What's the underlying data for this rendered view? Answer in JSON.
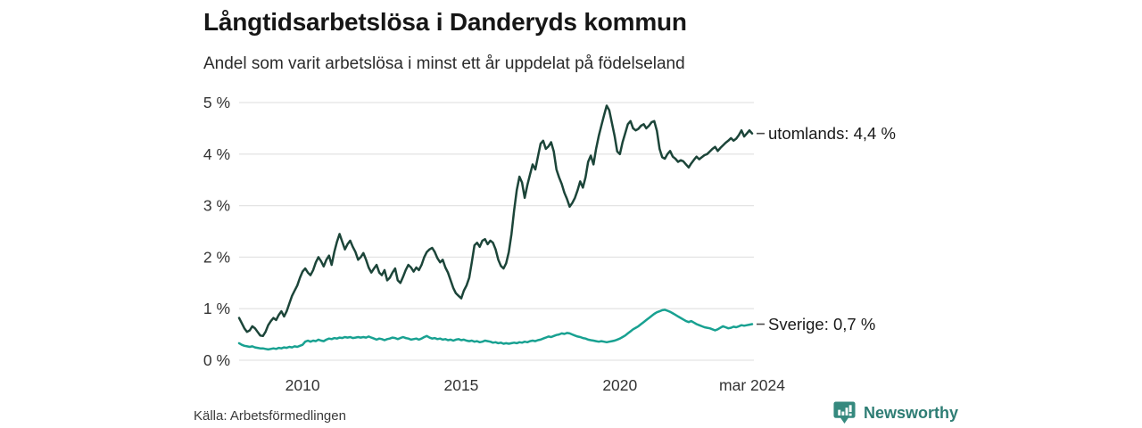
{
  "footer": {
    "source": "Källa: Arbetsförmedlingen",
    "brand": "Newsworthy"
  },
  "colors": {
    "series_utomlands": "#1c4539",
    "series_sverige": "#18a191",
    "gridline": "#e4e4e4",
    "axis_text": "#333333",
    "label_text": "#1a1a1a",
    "leader_dash": "#4a4a4a",
    "brand_teal": "#35897e",
    "brand_text": "#2e7d74"
  },
  "chart_data": {
    "type": "line",
    "title": "Långtidsarbetslösa i Danderyds kommun",
    "subtitle": "Andel som varit arbetslösa i minst ett år uppdelat på födelseland",
    "x_unit": "decimal_year_monthly",
    "xlim": [
      2008.0,
      2024.167
    ],
    "ylim": [
      0,
      5
    ],
    "grid": "horizontal",
    "legend_position": "end-of-line",
    "yticks": [
      {
        "v": 0,
        "label": "0 %"
      },
      {
        "v": 1,
        "label": "1 %"
      },
      {
        "v": 2,
        "label": "2 %"
      },
      {
        "v": 3,
        "label": "3 %"
      },
      {
        "v": 4,
        "label": "4 %"
      },
      {
        "v": 5,
        "label": "5 %"
      }
    ],
    "xticks": [
      {
        "x": 2010,
        "label": "2010"
      },
      {
        "x": 2015,
        "label": "2015"
      },
      {
        "x": 2020,
        "label": "2020"
      },
      {
        "x": 2024.167,
        "label": "mar 2024"
      }
    ],
    "series": [
      {
        "name": "utomlands",
        "label": "utomlands: 4,4 %",
        "last_value": "4,4 %",
        "color": "#1c4539",
        "x_start": 2008.0,
        "x_step_months": 1,
        "values": [
          0.82,
          0.72,
          0.62,
          0.55,
          0.58,
          0.66,
          0.62,
          0.55,
          0.48,
          0.47,
          0.55,
          0.68,
          0.76,
          0.82,
          0.78,
          0.88,
          0.95,
          0.85,
          0.95,
          1.1,
          1.25,
          1.35,
          1.45,
          1.6,
          1.72,
          1.78,
          1.7,
          1.65,
          1.75,
          1.9,
          2.0,
          1.92,
          1.82,
          1.95,
          2.03,
          1.85,
          2.1,
          2.3,
          2.45,
          2.3,
          2.15,
          2.25,
          2.32,
          2.2,
          2.1,
          1.95,
          2.0,
          2.08,
          1.95,
          1.8,
          1.7,
          1.78,
          1.85,
          1.7,
          1.65,
          1.75,
          1.55,
          1.6,
          1.7,
          1.78,
          1.55,
          1.5,
          1.62,
          1.75,
          1.85,
          1.8,
          1.72,
          1.8,
          1.75,
          1.85,
          2.0,
          2.1,
          2.15,
          2.18,
          2.1,
          1.98,
          1.9,
          1.95,
          1.8,
          1.7,
          1.55,
          1.4,
          1.3,
          1.25,
          1.2,
          1.35,
          1.45,
          1.6,
          1.9,
          2.23,
          2.28,
          2.2,
          2.32,
          2.35,
          2.25,
          2.32,
          2.28,
          2.15,
          1.95,
          1.83,
          1.78,
          1.88,
          2.1,
          2.45,
          2.9,
          3.3,
          3.56,
          3.45,
          3.15,
          3.4,
          3.6,
          3.8,
          3.7,
          3.95,
          4.2,
          4.26,
          4.1,
          4.15,
          4.23,
          4.05,
          3.7,
          3.55,
          3.42,
          3.25,
          3.13,
          2.98,
          3.05,
          3.15,
          3.3,
          3.47,
          3.35,
          3.55,
          3.85,
          3.97,
          3.8,
          4.1,
          4.35,
          4.55,
          4.75,
          4.94,
          4.85,
          4.6,
          4.35,
          4.05,
          4.0,
          4.23,
          4.4,
          4.58,
          4.64,
          4.5,
          4.46,
          4.49,
          4.55,
          4.58,
          4.5,
          4.55,
          4.62,
          4.64,
          4.45,
          4.1,
          3.94,
          3.91,
          4.0,
          4.06,
          3.95,
          3.91,
          3.85,
          3.88,
          3.86,
          3.8,
          3.74,
          3.82,
          3.89,
          3.95,
          3.9,
          3.94,
          3.98,
          4.0,
          4.05,
          4.1,
          4.14,
          4.06,
          4.12,
          4.17,
          4.22,
          4.26,
          4.31,
          4.26,
          4.3,
          4.37,
          4.46,
          4.34,
          4.4,
          4.46,
          4.4
        ]
      },
      {
        "name": "sverige",
        "label": "Sverige: 0,7 %",
        "last_value": "0,7 %",
        "color": "#18a191",
        "x_start": 2008.0,
        "x_step_months": 1,
        "values": [
          0.33,
          0.3,
          0.28,
          0.27,
          0.26,
          0.27,
          0.25,
          0.24,
          0.23,
          0.23,
          0.22,
          0.21,
          0.22,
          0.23,
          0.22,
          0.24,
          0.23,
          0.25,
          0.24,
          0.26,
          0.25,
          0.27,
          0.26,
          0.28,
          0.3,
          0.36,
          0.38,
          0.36,
          0.38,
          0.37,
          0.4,
          0.38,
          0.37,
          0.4,
          0.42,
          0.41,
          0.43,
          0.42,
          0.44,
          0.43,
          0.45,
          0.44,
          0.45,
          0.43,
          0.44,
          0.45,
          0.44,
          0.45,
          0.44,
          0.46,
          0.44,
          0.42,
          0.4,
          0.42,
          0.41,
          0.39,
          0.41,
          0.42,
          0.44,
          0.43,
          0.41,
          0.43,
          0.45,
          0.43,
          0.42,
          0.4,
          0.41,
          0.42,
          0.4,
          0.42,
          0.45,
          0.47,
          0.44,
          0.42,
          0.43,
          0.41,
          0.42,
          0.4,
          0.41,
          0.39,
          0.4,
          0.38,
          0.4,
          0.41,
          0.39,
          0.4,
          0.38,
          0.37,
          0.38,
          0.36,
          0.37,
          0.35,
          0.36,
          0.38,
          0.37,
          0.36,
          0.34,
          0.35,
          0.33,
          0.34,
          0.32,
          0.33,
          0.32,
          0.33,
          0.34,
          0.33,
          0.35,
          0.34,
          0.36,
          0.35,
          0.37,
          0.38,
          0.37,
          0.39,
          0.4,
          0.42,
          0.44,
          0.46,
          0.45,
          0.47,
          0.49,
          0.5,
          0.52,
          0.51,
          0.53,
          0.52,
          0.5,
          0.48,
          0.46,
          0.45,
          0.43,
          0.42,
          0.4,
          0.39,
          0.38,
          0.37,
          0.36,
          0.37,
          0.36,
          0.35,
          0.36,
          0.37,
          0.38,
          0.4,
          0.42,
          0.45,
          0.48,
          0.52,
          0.56,
          0.6,
          0.63,
          0.66,
          0.7,
          0.74,
          0.78,
          0.82,
          0.86,
          0.9,
          0.93,
          0.95,
          0.97,
          0.98,
          0.96,
          0.94,
          0.91,
          0.88,
          0.85,
          0.82,
          0.79,
          0.76,
          0.74,
          0.76,
          0.73,
          0.7,
          0.68,
          0.66,
          0.64,
          0.63,
          0.62,
          0.6,
          0.58,
          0.6,
          0.63,
          0.66,
          0.64,
          0.62,
          0.63,
          0.65,
          0.64,
          0.66,
          0.68,
          0.67,
          0.68,
          0.69,
          0.7
        ]
      }
    ]
  }
}
